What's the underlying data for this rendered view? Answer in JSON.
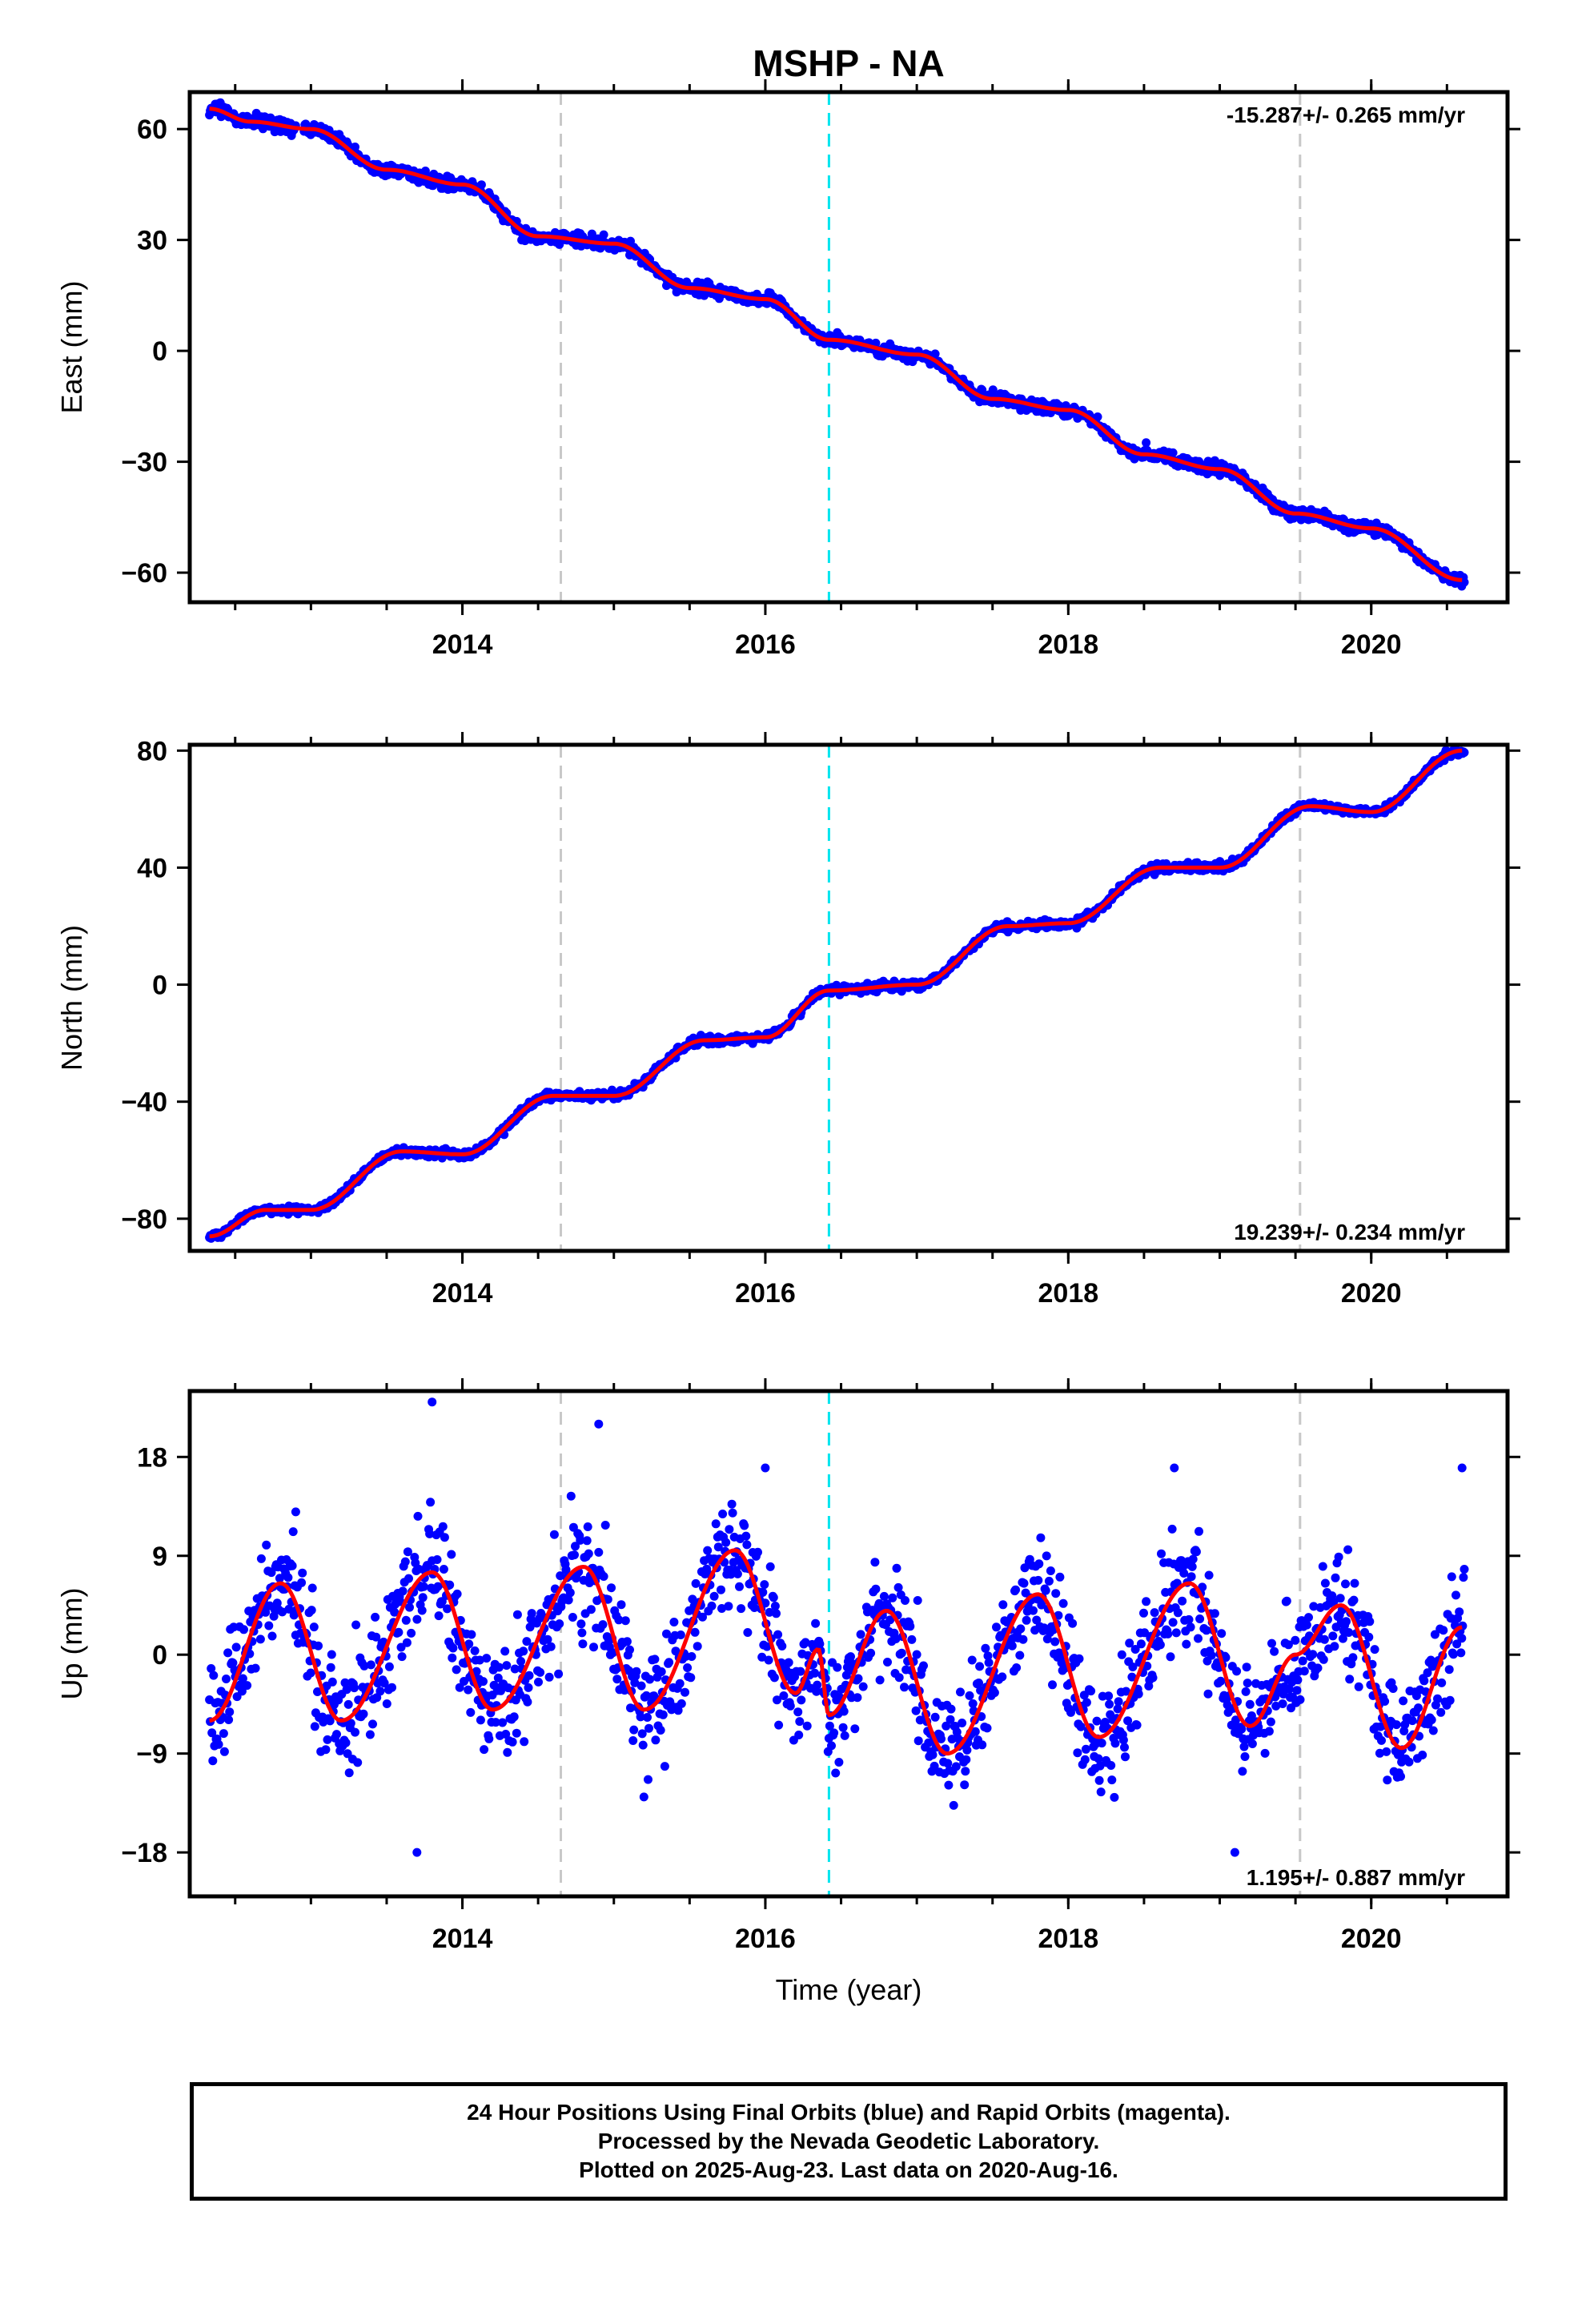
{
  "chart_data": {
    "title": "MSHP - NA",
    "type": "scatter",
    "xlabel": "Time (year)",
    "xlim": [
      2012.2,
      2020.9
    ],
    "x_ticks": [
      "2014",
      "2016",
      "2018",
      "2020"
    ],
    "grid": false,
    "event_lines": [
      {
        "x": 2014.65,
        "color": "#c8c8c8",
        "style": "dashed"
      },
      {
        "x": 2016.42,
        "color": "#00e5ee",
        "style": "dashed"
      },
      {
        "x": 2019.53,
        "color": "#c8c8c8",
        "style": "dashed"
      }
    ],
    "colors": {
      "daily_positions": "#0000ff",
      "model_fit": "#ff0000"
    },
    "panels": [
      {
        "ylabel": "East (mm)",
        "ylim": [
          -68,
          70
        ],
        "y_ticks": [
          "−60",
          "−30",
          "0",
          "30",
          "60"
        ],
        "rate": "-15.287+/- 0.265 mm/yr",
        "rate_position": "top-right",
        "fit": [
          [
            2012.33,
            65.5
          ],
          [
            2012.6,
            62
          ],
          [
            2013.0,
            60
          ],
          [
            2013.5,
            49
          ],
          [
            2014.0,
            45
          ],
          [
            2014.5,
            31
          ],
          [
            2015.0,
            29
          ],
          [
            2015.5,
            17
          ],
          [
            2016.0,
            14
          ],
          [
            2016.42,
            3
          ],
          [
            2017.0,
            -1
          ],
          [
            2017.5,
            -13
          ],
          [
            2018.0,
            -16
          ],
          [
            2018.5,
            -28
          ],
          [
            2019.0,
            -32
          ],
          [
            2019.5,
            -44
          ],
          [
            2020.0,
            -48
          ],
          [
            2020.6,
            -62
          ]
        ],
        "scatter": {
          "noise_mm": 1.2
        }
      },
      {
        "ylabel": "North (mm)",
        "ylim": [
          -91,
          82
        ],
        "y_ticks": [
          "−80",
          "−40",
          "0",
          "40",
          "80"
        ],
        "rate": "19.239+/- 0.234 mm/yr",
        "rate_position": "bottom-right",
        "fit": [
          [
            2012.33,
            -86
          ],
          [
            2012.7,
            -77
          ],
          [
            2013.0,
            -77
          ],
          [
            2013.6,
            -57
          ],
          [
            2014.0,
            -58
          ],
          [
            2014.6,
            -38
          ],
          [
            2015.0,
            -38
          ],
          [
            2015.6,
            -19
          ],
          [
            2016.0,
            -18
          ],
          [
            2016.42,
            -2
          ],
          [
            2017.0,
            0
          ],
          [
            2017.6,
            20
          ],
          [
            2018.0,
            21
          ],
          [
            2018.6,
            40
          ],
          [
            2019.0,
            40
          ],
          [
            2019.6,
            61
          ],
          [
            2020.0,
            59
          ],
          [
            2020.6,
            80
          ]
        ],
        "scatter": {
          "noise_mm": 1.0
        }
      },
      {
        "ylabel": "Up (mm)",
        "ylim": [
          -22,
          24
        ],
        "y_ticks": [
          "−18",
          "−9",
          "0",
          "9",
          "18"
        ],
        "rate": "1.195+/- 0.887 mm/yr",
        "rate_position": "bottom-right",
        "fit": [
          [
            2012.33,
            -6
          ],
          [
            2012.8,
            6.5
          ],
          [
            2013.2,
            -6
          ],
          [
            2013.8,
            7.5
          ],
          [
            2014.2,
            -5
          ],
          [
            2014.8,
            8
          ],
          [
            2015.2,
            -5
          ],
          [
            2015.8,
            9.5
          ],
          [
            2016.2,
            -3.5
          ],
          [
            2016.35,
            0.5
          ],
          [
            2016.42,
            -5.5
          ],
          [
            2016.8,
            4
          ],
          [
            2017.2,
            -9
          ],
          [
            2017.8,
            5.5
          ],
          [
            2018.2,
            -7.5
          ],
          [
            2018.8,
            6.5
          ],
          [
            2019.2,
            -6.5
          ],
          [
            2019.5,
            0
          ],
          [
            2019.8,
            4.5
          ],
          [
            2020.2,
            -8.5
          ],
          [
            2020.6,
            2.5
          ]
        ],
        "scatter": {
          "noise_mm": 3.5
        },
        "outliers": [
          [
            2013.8,
            23
          ],
          [
            2014.9,
            21
          ],
          [
            2013.7,
            -18
          ],
          [
            2012.9,
            13
          ],
          [
            2016.0,
            17
          ],
          [
            2019.1,
            -18
          ],
          [
            2020.6,
            17
          ],
          [
            2018.7,
            17
          ]
        ]
      }
    ]
  },
  "footer": {
    "line1": "24 Hour Positions Using Final Orbits (blue) and Rapid Orbits (magenta).",
    "line2": "Processed by the Nevada Geodetic Laboratory.",
    "line3": "Plotted on 2025-Aug-23. Last data on 2020-Aug-16."
  }
}
